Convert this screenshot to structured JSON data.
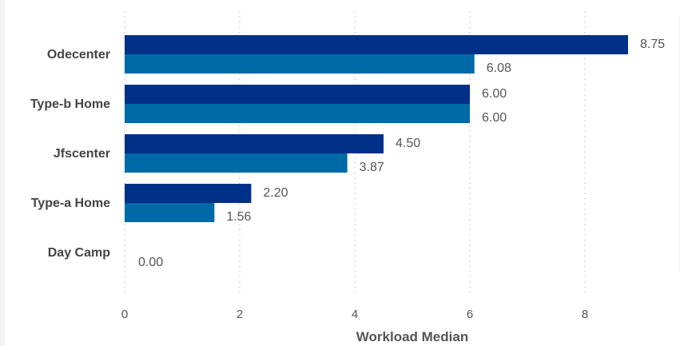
{
  "chart_data": {
    "type": "bar",
    "orientation": "horizontal",
    "categories": [
      "Odecenter",
      "Type-b Home",
      "Jfscenter",
      "Type-a Home",
      "Day Camp"
    ],
    "series": [
      {
        "values": [
          8.75,
          6.0,
          4.5,
          2.2,
          0.0
        ],
        "color": "#003087"
      },
      {
        "values": [
          6.08,
          6.0,
          3.87,
          1.56,
          0.0
        ],
        "color": "#006aa6"
      }
    ],
    "value_labels": [
      [
        "8.75",
        "6.00",
        "4.50",
        "2.20",
        "0.00"
      ],
      [
        "6.08",
        "6.00",
        "3.87",
        "1.56",
        ""
      ]
    ],
    "x_ticks": [
      "0",
      "2",
      "4",
      "6",
      "8"
    ],
    "xlabel": "Workload Median",
    "xlim": [
      0,
      9.5
    ],
    "grid": "vertical dotted"
  }
}
